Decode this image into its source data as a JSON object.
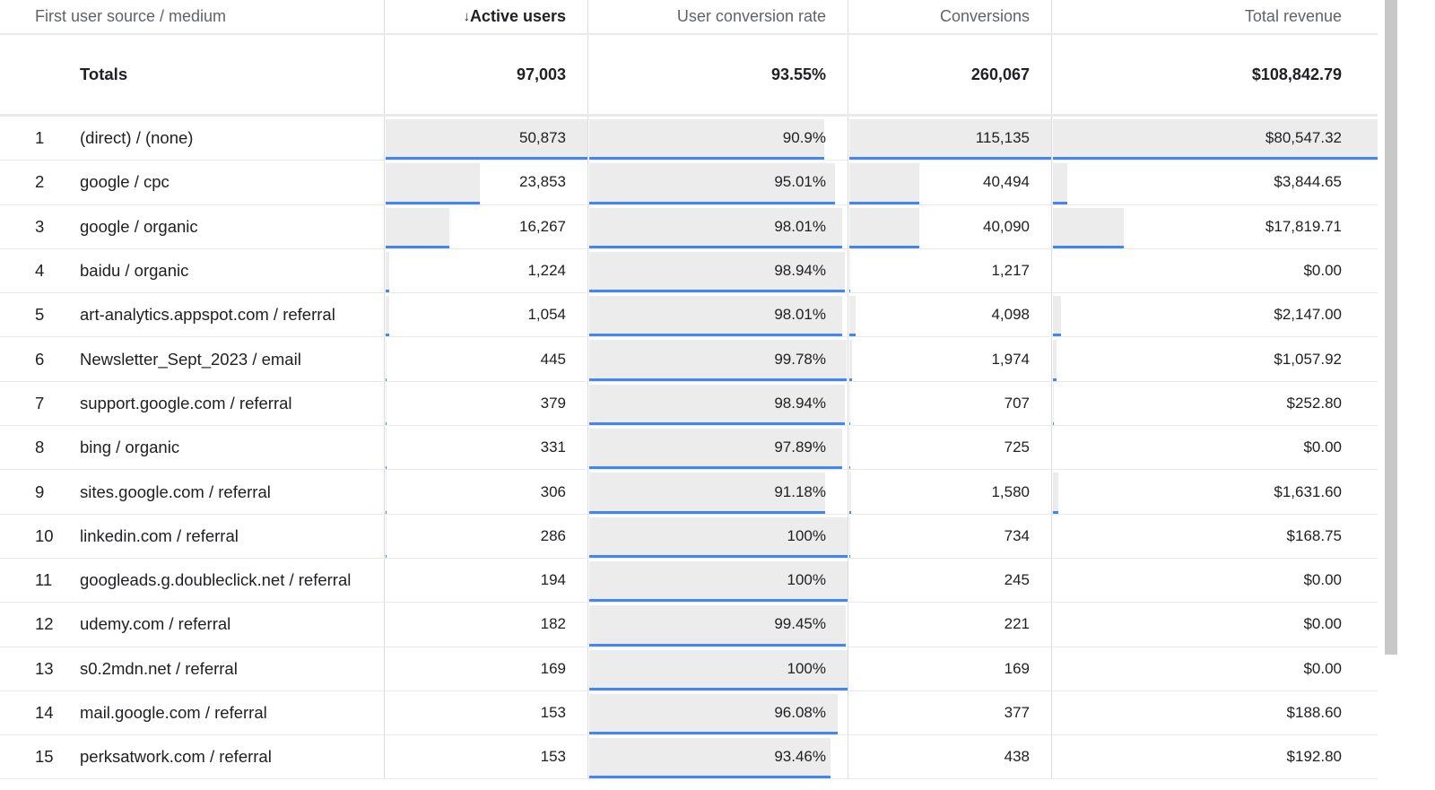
{
  "header": {
    "dimension": "First user source / medium",
    "sort_icon": "↓",
    "active_users": "Active users",
    "conversion_rate": "User conversion rate",
    "conversions": "Conversions",
    "revenue": "Total revenue"
  },
  "totals": {
    "label": "Totals",
    "active_users": "97,003",
    "conversion_rate": "93.55%",
    "conversions": "260,067",
    "revenue": "$108,842.79"
  },
  "rows": [
    {
      "idx": "1",
      "source": "(direct) / (none)",
      "active_users": "50,873",
      "conversion_rate": "90.9%",
      "conversions": "115,135",
      "revenue": "$80,547.32",
      "n": [
        50873,
        90.9,
        115135,
        80547.32
      ]
    },
    {
      "idx": "2",
      "source": "google / cpc",
      "active_users": "23,853",
      "conversion_rate": "95.01%",
      "conversions": "40,494",
      "revenue": "$3,844.65",
      "n": [
        23853,
        95.01,
        40494,
        3844.65
      ]
    },
    {
      "idx": "3",
      "source": "google / organic",
      "active_users": "16,267",
      "conversion_rate": "98.01%",
      "conversions": "40,090",
      "revenue": "$17,819.71",
      "n": [
        16267,
        98.01,
        40090,
        17819.71
      ]
    },
    {
      "idx": "4",
      "source": "baidu / organic",
      "active_users": "1,224",
      "conversion_rate": "98.94%",
      "conversions": "1,217",
      "revenue": "$0.00",
      "n": [
        1224,
        98.94,
        1217,
        0
      ]
    },
    {
      "idx": "5",
      "source": "art-analytics.appspot.com / referral",
      "active_users": "1,054",
      "conversion_rate": "98.01%",
      "conversions": "4,098",
      "revenue": "$2,147.00",
      "n": [
        1054,
        98.01,
        4098,
        2147
      ]
    },
    {
      "idx": "6",
      "source": "Newsletter_Sept_2023 / email",
      "active_users": "445",
      "conversion_rate": "99.78%",
      "conversions": "1,974",
      "revenue": "$1,057.92",
      "n": [
        445,
        99.78,
        1974,
        1057.92
      ]
    },
    {
      "idx": "7",
      "source": "support.google.com / referral",
      "active_users": "379",
      "conversion_rate": "98.94%",
      "conversions": "707",
      "revenue": "$252.80",
      "n": [
        379,
        98.94,
        707,
        252.8
      ]
    },
    {
      "idx": "8",
      "source": "bing / organic",
      "active_users": "331",
      "conversion_rate": "97.89%",
      "conversions": "725",
      "revenue": "$0.00",
      "n": [
        331,
        97.89,
        725,
        0
      ]
    },
    {
      "idx": "9",
      "source": "sites.google.com / referral",
      "active_users": "306",
      "conversion_rate": "91.18%",
      "conversions": "1,580",
      "revenue": "$1,631.60",
      "n": [
        306,
        91.18,
        1580,
        1631.6
      ]
    },
    {
      "idx": "10",
      "source": "linkedin.com / referral",
      "active_users": "286",
      "conversion_rate": "100%",
      "conversions": "734",
      "revenue": "$168.75",
      "n": [
        286,
        100,
        734,
        168.75
      ]
    },
    {
      "idx": "11",
      "source": "googleads.g.doubleclick.net / referral",
      "active_users": "194",
      "conversion_rate": "100%",
      "conversions": "245",
      "revenue": "$0.00",
      "n": [
        194,
        100,
        245,
        0
      ]
    },
    {
      "idx": "12",
      "source": "udemy.com / referral",
      "active_users": "182",
      "conversion_rate": "99.45%",
      "conversions": "221",
      "revenue": "$0.00",
      "n": [
        182,
        99.45,
        221,
        0
      ]
    },
    {
      "idx": "13",
      "source": "s0.2mdn.net / referral",
      "active_users": "169",
      "conversion_rate": "100%",
      "conversions": "169",
      "revenue": "$0.00",
      "n": [
        169,
        100,
        169,
        0
      ]
    },
    {
      "idx": "14",
      "source": "mail.google.com / referral",
      "active_users": "153",
      "conversion_rate": "96.08%",
      "conversions": "377",
      "revenue": "$188.60",
      "n": [
        153,
        96.08,
        377,
        188.6
      ]
    },
    {
      "idx": "15",
      "source": "perksatwork.com / referral",
      "active_users": "153",
      "conversion_rate": "93.46%",
      "conversions": "438",
      "revenue": "$192.80",
      "n": [
        153,
        93.46,
        438,
        192.8
      ]
    }
  ],
  "colors": {
    "bar": "#ececec",
    "accent": "#4285f4"
  }
}
